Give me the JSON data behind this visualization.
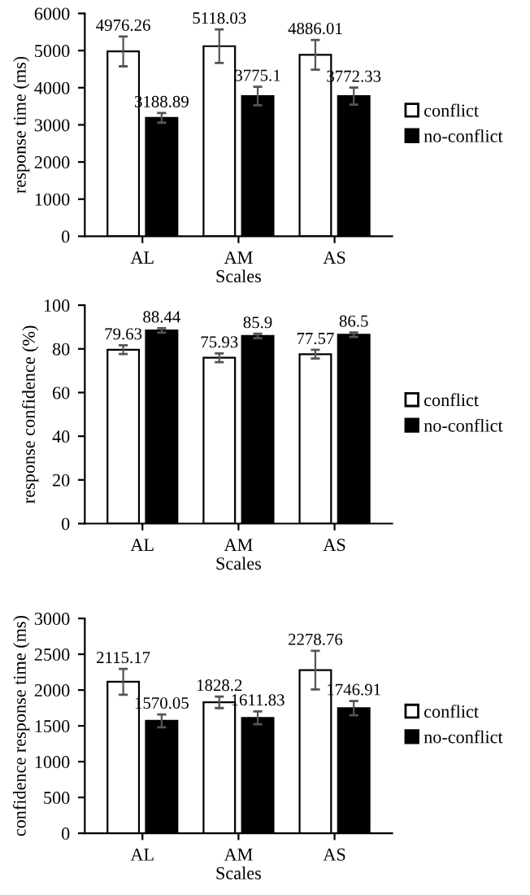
{
  "chart_data": [
    {
      "type": "bar",
      "xlabel": "Scales",
      "ylabel": "response time (ms)",
      "categories": [
        "AL",
        "AM",
        "AS"
      ],
      "ylim": [
        0,
        6000
      ],
      "yticks": [
        0,
        1000,
        2000,
        3000,
        4000,
        5000,
        6000
      ],
      "data_labels": true,
      "legend": "right",
      "grid": false,
      "series": [
        {
          "name": "conflict",
          "color": "#ffffff",
          "values": [
            4976.26,
            5118.03,
            4886.01
          ],
          "errors": [
            400,
            450,
            400
          ]
        },
        {
          "name": "no-conflict",
          "color": "#000000",
          "values": [
            3188.89,
            3775.1,
            3772.33
          ],
          "errors": [
            130,
            250,
            230
          ]
        }
      ]
    },
    {
      "type": "bar",
      "xlabel": "Scales",
      "ylabel": "response confidence (%)",
      "categories": [
        "AL",
        "AM",
        "AS"
      ],
      "ylim": [
        0,
        100
      ],
      "yticks": [
        0,
        20,
        40,
        60,
        80,
        100
      ],
      "data_labels": true,
      "legend": "right",
      "grid": false,
      "series": [
        {
          "name": "conflict",
          "color": "#ffffff",
          "values": [
            79.63,
            75.93,
            77.57
          ],
          "errors": [
            2,
            2,
            2
          ]
        },
        {
          "name": "no-conflict",
          "color": "#000000",
          "values": [
            88.44,
            85.9,
            86.5
          ],
          "errors": [
            1,
            1,
            1
          ]
        }
      ]
    },
    {
      "type": "bar",
      "xlabel": "Scales",
      "ylabel": "confidence response time (ms)",
      "categories": [
        "AL",
        "AM",
        "AS"
      ],
      "ylim": [
        0,
        3000
      ],
      "yticks": [
        0,
        500,
        1000,
        1500,
        2000,
        2500,
        3000
      ],
      "data_labels": true,
      "legend": "right",
      "grid": false,
      "series": [
        {
          "name": "conflict",
          "color": "#ffffff",
          "values": [
            2115.17,
            1828.2,
            2278.76
          ],
          "errors": [
            180,
            80,
            270
          ]
        },
        {
          "name": "no-conflict",
          "color": "#000000",
          "values": [
            1570.05,
            1611.83,
            1746.91
          ],
          "errors": [
            90,
            90,
            100
          ]
        }
      ]
    }
  ]
}
